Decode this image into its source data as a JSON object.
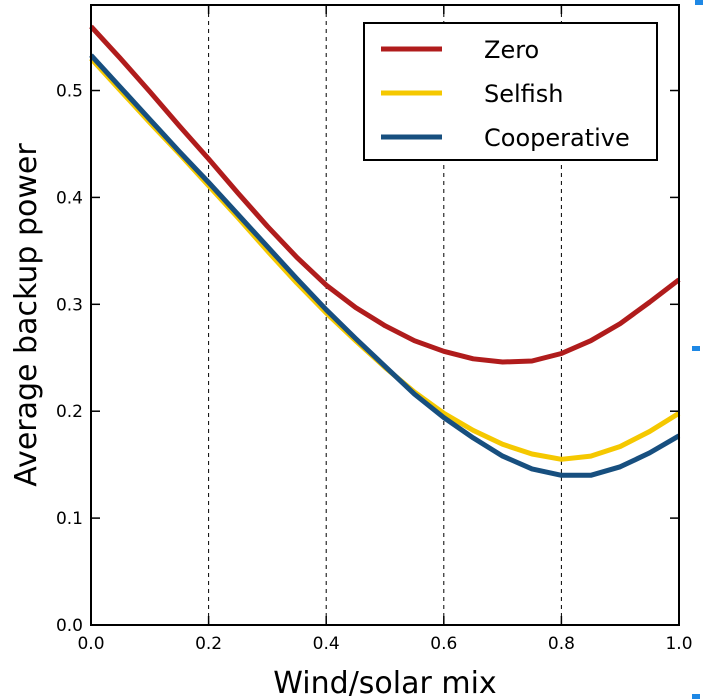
{
  "chart_data": {
    "type": "line",
    "title": "",
    "xlabel": "Wind/solar mix",
    "ylabel": "Average backup power",
    "xlim": [
      0.0,
      1.0
    ],
    "ylim": [
      0.0,
      0.58
    ],
    "xticks": [
      "0.0",
      "0.2",
      "0.4",
      "0.6",
      "0.8",
      "1.0"
    ],
    "yticks": [
      "0.0",
      "0.1",
      "0.2",
      "0.3",
      "0.4",
      "0.5"
    ],
    "xtick_values": [
      0.0,
      0.2,
      0.4,
      0.6,
      0.8,
      1.0
    ],
    "ytick_values": [
      0.0,
      0.1,
      0.2,
      0.3,
      0.4,
      0.5
    ],
    "vertical_dashed_lines": [
      0.2,
      0.4,
      0.6,
      0.8
    ],
    "grid": false,
    "legend_position": "top-right",
    "x": [
      0.0,
      0.05,
      0.1,
      0.15,
      0.2,
      0.25,
      0.3,
      0.35,
      0.4,
      0.45,
      0.5,
      0.55,
      0.6,
      0.65,
      0.7,
      0.75,
      0.8,
      0.85,
      0.9,
      0.95,
      1.0
    ],
    "series": [
      {
        "name": "Zero",
        "color": "#b01c1c",
        "values": [
          0.56,
          0.53,
          0.499,
          0.467,
          0.436,
          0.404,
          0.373,
          0.344,
          0.318,
          0.297,
          0.28,
          0.266,
          0.256,
          0.249,
          0.246,
          0.247,
          0.254,
          0.266,
          0.282,
          0.302,
          0.323
        ]
      },
      {
        "name": "Selfish",
        "color": "#f5c800",
        "values": [
          0.53,
          0.5,
          0.47,
          0.441,
          0.411,
          0.381,
          0.35,
          0.32,
          0.292,
          0.266,
          0.241,
          0.218,
          0.198,
          0.182,
          0.169,
          0.16,
          0.155,
          0.158,
          0.167,
          0.181,
          0.198
        ]
      },
      {
        "name": "Cooperative",
        "color": "#174f7f",
        "values": [
          0.533,
          0.503,
          0.473,
          0.443,
          0.414,
          0.384,
          0.354,
          0.324,
          0.295,
          0.268,
          0.242,
          0.216,
          0.194,
          0.175,
          0.158,
          0.146,
          0.14,
          0.14,
          0.148,
          0.161,
          0.177
        ]
      }
    ]
  }
}
